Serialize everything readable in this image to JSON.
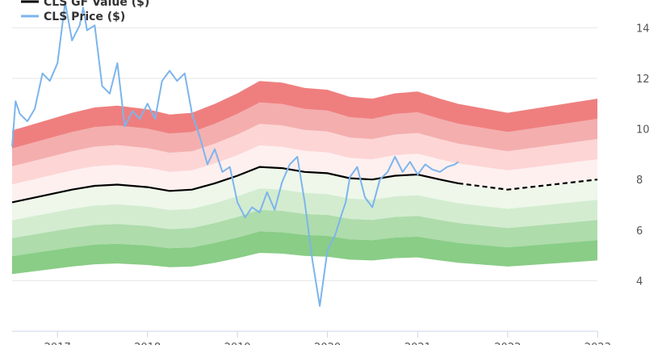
{
  "chart_data": {
    "type": "line",
    "x_type": "date",
    "xlim": [
      "2016-07-01",
      "2022-12-31"
    ],
    "ylim": [
      2.0,
      15.1
    ],
    "yticks": [
      4,
      6,
      8,
      10,
      12,
      14
    ],
    "xticks": [
      "2017",
      "2018",
      "2019",
      "2020",
      "2021",
      "2022",
      "2023"
    ],
    "grid": true,
    "legend": {
      "placement": "top-left",
      "entries": [
        {
          "label": "CLS GF Value ($)",
          "color": "#000000"
        },
        {
          "label": "CLS Price ($)",
          "color": "#7cb5ec"
        }
      ]
    },
    "gf_value": {
      "name": "CLS GF Value ($)",
      "color": "#000000",
      "x": [
        "2016-07-01",
        "2017-03-01",
        "2017-06-01",
        "2017-09-01",
        "2018-01-01",
        "2018-04-01",
        "2018-07-01",
        "2018-10-01",
        "2019-01-01",
        "2019-04-01",
        "2019-07-01",
        "2019-10-01",
        "2020-01-01",
        "2020-04-01",
        "2020-07-01",
        "2020-10-01",
        "2021-01-01",
        "2021-04-01",
        "2021-06-15",
        "2022-01-01",
        "2022-12-31"
      ],
      "values": [
        7.1,
        7.6,
        7.75,
        7.8,
        7.7,
        7.55,
        7.6,
        7.85,
        8.15,
        8.5,
        8.45,
        8.3,
        8.25,
        8.05,
        8.0,
        8.15,
        8.2,
        8.0,
        7.85,
        7.6,
        8.0
      ],
      "forecast_from": "2021-06-15"
    },
    "bands": {
      "offsets": [
        0.1,
        0.2,
        0.3,
        0.4
      ],
      "upper_colors": [
        "#fff0f0",
        "#fdd5d5",
        "#f4aeae",
        "#ef7f7f"
      ],
      "lower_colors": [
        "#eef7ea",
        "#d3ecd0",
        "#aedcab",
        "#89cd86"
      ]
    },
    "price": {
      "name": "CLS Price ($)",
      "color": "#7cb5ec",
      "x": [
        "2016-07-01",
        "2016-07-15",
        "2016-08-01",
        "2016-09-01",
        "2016-10-01",
        "2016-11-01",
        "2016-12-01",
        "2017-01-01",
        "2017-02-01",
        "2017-03-01",
        "2017-04-01",
        "2017-04-15",
        "2017-05-01",
        "2017-06-01",
        "2017-07-01",
        "2017-08-01",
        "2017-09-01",
        "2017-10-01",
        "2017-11-01",
        "2017-12-01",
        "2018-01-01",
        "2018-02-01",
        "2018-03-01",
        "2018-04-01",
        "2018-05-01",
        "2018-06-01",
        "2018-07-01",
        "2018-08-01",
        "2018-09-01",
        "2018-10-01",
        "2018-11-01",
        "2018-12-01",
        "2019-01-01",
        "2019-02-01",
        "2019-03-01",
        "2019-04-01",
        "2019-05-01",
        "2019-06-01",
        "2019-07-01",
        "2019-08-01",
        "2019-09-01",
        "2019-10-01",
        "2019-11-01",
        "2019-12-01",
        "2020-01-01",
        "2020-02-01",
        "2020-03-01",
        "2020-03-15",
        "2020-04-01",
        "2020-05-01",
        "2020-06-01",
        "2020-07-01",
        "2020-08-01",
        "2020-09-01",
        "2020-10-01",
        "2020-11-01",
        "2020-12-01",
        "2021-01-01",
        "2021-02-01",
        "2021-03-01",
        "2021-04-01",
        "2021-05-01",
        "2021-06-01",
        "2021-06-15"
      ],
      "values": [
        9.3,
        11.1,
        10.6,
        10.3,
        10.8,
        12.2,
        11.9,
        12.6,
        15.0,
        13.5,
        14.1,
        14.8,
        13.9,
        14.1,
        11.7,
        11.4,
        12.6,
        10.1,
        10.7,
        10.4,
        11.0,
        10.4,
        11.9,
        12.3,
        11.9,
        12.2,
        10.6,
        9.7,
        8.6,
        9.2,
        8.3,
        8.5,
        7.1,
        6.5,
        6.9,
        6.7,
        7.5,
        6.8,
        7.9,
        8.6,
        8.9,
        7.1,
        4.8,
        3.0,
        5.2,
        5.8,
        6.7,
        7.1,
        8.1,
        8.5,
        7.3,
        6.9,
        8.0,
        8.3,
        8.9,
        8.3,
        8.7,
        8.2,
        8.6,
        8.4,
        8.3,
        8.5,
        8.6,
        8.7
      ]
    }
  }
}
